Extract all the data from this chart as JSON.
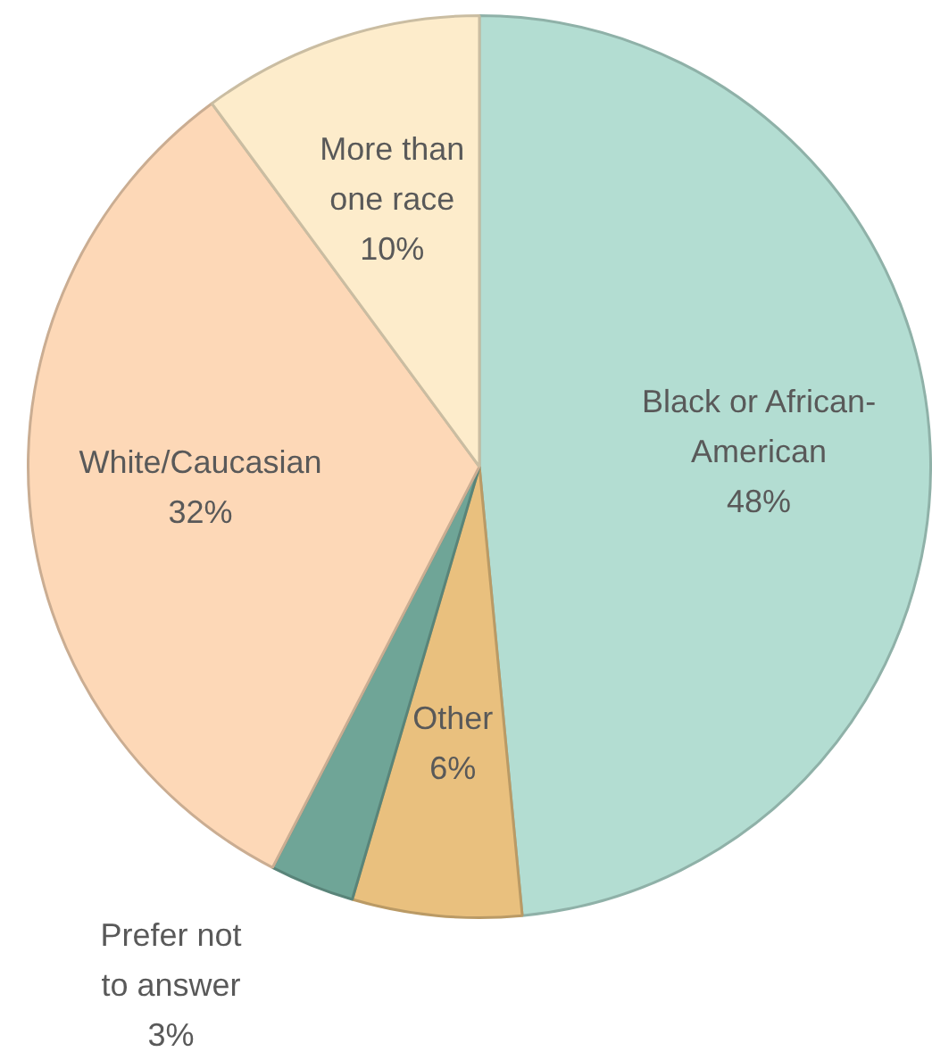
{
  "chart_data": {
    "type": "pie",
    "categories": [
      "Black or African-American",
      "Other",
      "Prefer not to answer",
      "White/Caucasian",
      "More than one race"
    ],
    "values": [
      48,
      6,
      3,
      32,
      10
    ],
    "value_labels": [
      "48%",
      "6%",
      "3%",
      "32%",
      "10%"
    ],
    "colors": [
      "#b3ddd2",
      "#e9c07e",
      "#6fa597",
      "#fdd8b7",
      "#fdeccb"
    ],
    "legend": false
  }
}
